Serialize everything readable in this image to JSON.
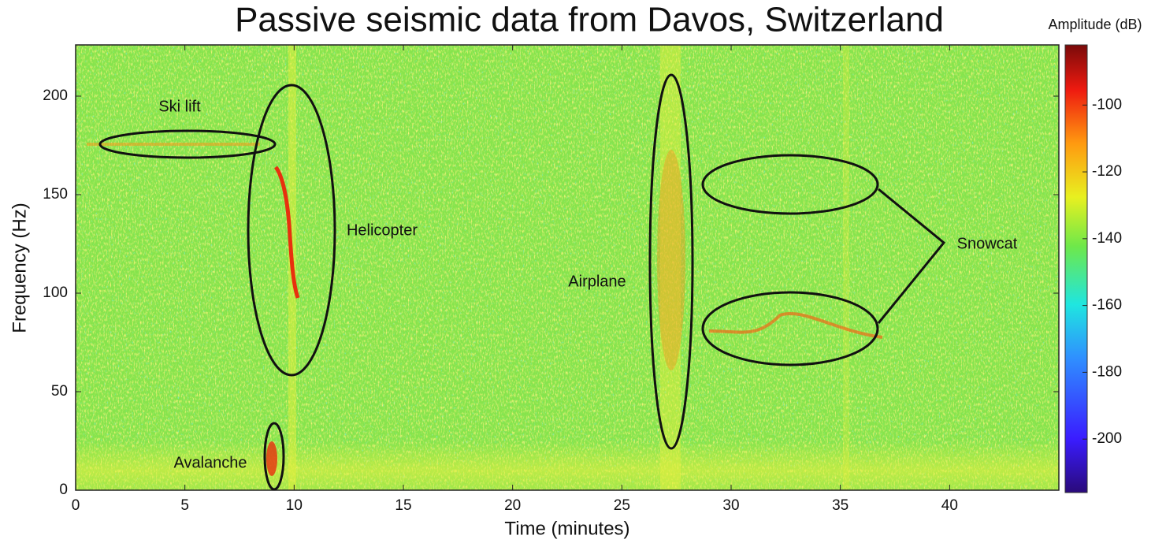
{
  "chart_data": {
    "type": "spectrogram",
    "title": "Passive seismic data from Davos, Switzerland",
    "x_label": "Time (minutes)",
    "y_label": "Frequency (Hz)",
    "xlim": [
      0,
      45
    ],
    "xticks": [
      0,
      5,
      10,
      15,
      20,
      25,
      30,
      35,
      40
    ],
    "ylim": [
      0,
      226
    ],
    "yticks": [
      0,
      50,
      100,
      150,
      200
    ],
    "colorbar": {
      "label": "Amplitude (dB)",
      "lim": [
        -216,
        -82
      ],
      "ticks": [
        -100,
        -120,
        -140,
        -160,
        -180,
        -200
      ]
    },
    "annotations": [
      "Ski lift",
      "Helicopter",
      "Avalanche",
      "Airplane",
      "Snowcat"
    ]
  }
}
